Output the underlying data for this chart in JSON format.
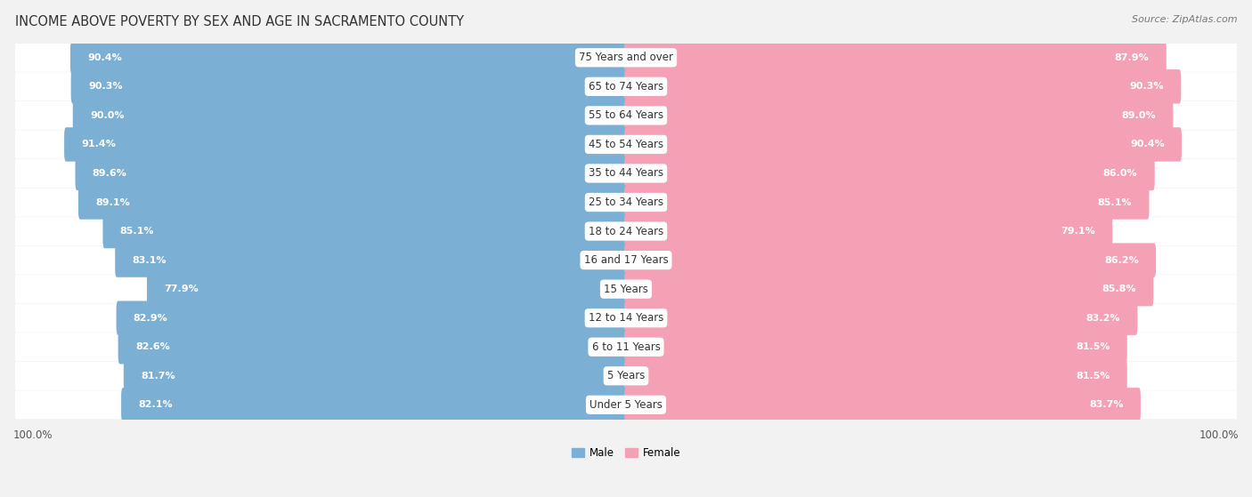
{
  "title": "INCOME ABOVE POVERTY BY SEX AND AGE IN SACRAMENTO COUNTY",
  "source": "Source: ZipAtlas.com",
  "categories": [
    "Under 5 Years",
    "5 Years",
    "6 to 11 Years",
    "12 to 14 Years",
    "15 Years",
    "16 and 17 Years",
    "18 to 24 Years",
    "25 to 34 Years",
    "35 to 44 Years",
    "45 to 54 Years",
    "55 to 64 Years",
    "65 to 74 Years",
    "75 Years and over"
  ],
  "male_values": [
    82.1,
    81.7,
    82.6,
    82.9,
    77.9,
    83.1,
    85.1,
    89.1,
    89.6,
    91.4,
    90.0,
    90.3,
    90.4
  ],
  "female_values": [
    83.7,
    81.5,
    81.5,
    83.2,
    85.8,
    86.2,
    79.1,
    85.1,
    86.0,
    90.4,
    89.0,
    90.3,
    87.9
  ],
  "male_color": "#7bafd4",
  "female_color": "#f4a0b5",
  "male_label": "Male",
  "female_label": "Female",
  "background_color": "#f2f2f2",
  "bar_background_color": "#ffffff",
  "title_fontsize": 10.5,
  "label_fontsize": 8.5,
  "value_fontsize": 8.0,
  "source_fontsize": 8.0
}
